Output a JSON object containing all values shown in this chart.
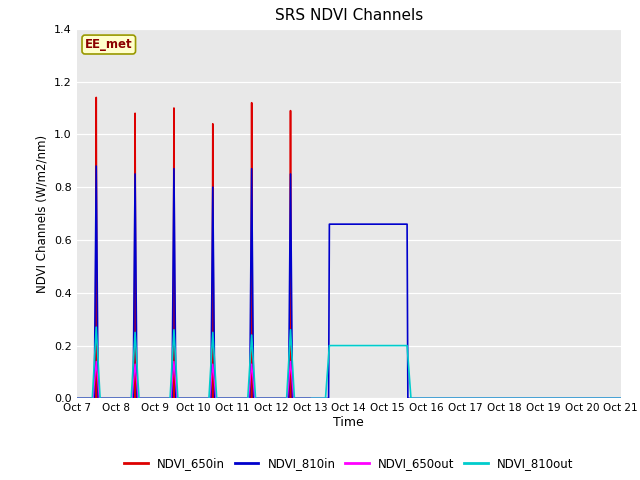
{
  "title": "SRS NDVI Channels",
  "xlabel": "Time",
  "ylabel": "NDVI Channels (W/m2/nm)",
  "ylim": [
    0,
    1.4
  ],
  "xlim": [
    0,
    14
  ],
  "annotation_text": "EE_met",
  "plot_bg_color": "#e8e8e8",
  "x_tick_labels": [
    "Oct 7",
    "Oct 8",
    "Oct 9",
    "Oct 10",
    "Oct 11",
    "Oct 12",
    "Oct 13",
    "Oct 14",
    "Oct 15",
    "Oct 16",
    "Oct 17",
    "Oct 18",
    "Oct 19",
    "Oct 20",
    "Oct 21"
  ],
  "x_tick_positions": [
    0,
    1,
    2,
    3,
    4,
    5,
    6,
    7,
    8,
    9,
    10,
    11,
    12,
    13,
    14
  ],
  "y_ticks": [
    0.0,
    0.2,
    0.4,
    0.6,
    0.8,
    1.0,
    1.2,
    1.4
  ],
  "series": {
    "NDVI_650in": {
      "color": "#dd0000",
      "linewidth": 1.2,
      "data_x": [
        0.0,
        0.48,
        0.5,
        0.52,
        1.48,
        1.5,
        1.52,
        2.48,
        2.5,
        2.52,
        3.48,
        3.5,
        3.52,
        4.48,
        4.5,
        4.52,
        5.48,
        5.5,
        5.52,
        6.0
      ],
      "data_y": [
        0.0,
        0.0,
        1.14,
        0.0,
        0.0,
        1.08,
        0.0,
        0.0,
        1.1,
        0.0,
        0.0,
        1.04,
        0.0,
        0.0,
        1.12,
        0.0,
        0.0,
        1.09,
        0.0,
        0.0
      ]
    },
    "NDVI_810in": {
      "color": "#0000cc",
      "linewidth": 1.2,
      "data_x": [
        0.0,
        0.45,
        0.5,
        0.55,
        1.45,
        1.5,
        1.55,
        2.45,
        2.5,
        2.55,
        3.45,
        3.5,
        3.55,
        4.45,
        4.5,
        4.55,
        5.45,
        5.5,
        5.55,
        5.99,
        6.0,
        6.48,
        6.5,
        6.52,
        8.48,
        8.5,
        8.52,
        14.0
      ],
      "data_y": [
        0.0,
        0.0,
        0.88,
        0.0,
        0.0,
        0.85,
        0.0,
        0.0,
        0.87,
        0.0,
        0.0,
        0.8,
        0.0,
        0.0,
        0.87,
        0.0,
        0.0,
        0.85,
        0.0,
        0.0,
        0.0,
        0.0,
        0.66,
        0.66,
        0.66,
        0.66,
        0.0,
        0.0
      ]
    },
    "NDVI_650out": {
      "color": "#ff00ff",
      "linewidth": 1.0,
      "data_x": [
        0.0,
        0.42,
        0.5,
        0.58,
        1.42,
        1.5,
        1.58,
        2.42,
        2.5,
        2.58,
        3.42,
        3.5,
        3.58,
        4.42,
        4.5,
        4.58,
        5.42,
        5.5,
        5.58,
        6.0
      ],
      "data_y": [
        0.0,
        0.0,
        0.14,
        0.0,
        0.0,
        0.13,
        0.0,
        0.0,
        0.14,
        0.0,
        0.0,
        0.13,
        0.0,
        0.0,
        0.13,
        0.0,
        0.0,
        0.14,
        0.0,
        0.0
      ]
    },
    "NDVI_810out": {
      "color": "#00cccc",
      "linewidth": 1.2,
      "data_x": [
        0.0,
        0.4,
        0.5,
        0.6,
        1.4,
        1.5,
        1.6,
        2.4,
        2.5,
        2.6,
        3.4,
        3.5,
        3.6,
        4.4,
        4.5,
        4.6,
        5.4,
        5.5,
        5.6,
        5.99,
        6.0,
        6.4,
        6.5,
        6.6,
        8.4,
        8.5,
        8.6,
        14.0
      ],
      "data_y": [
        0.0,
        0.0,
        0.27,
        0.0,
        0.0,
        0.25,
        0.0,
        0.0,
        0.26,
        0.0,
        0.0,
        0.25,
        0.0,
        0.0,
        0.24,
        0.0,
        0.0,
        0.26,
        0.0,
        0.0,
        0.0,
        0.0,
        0.2,
        0.2,
        0.2,
        0.2,
        0.0,
        0.0
      ]
    }
  },
  "legend": [
    {
      "label": "NDVI_650in",
      "color": "#dd0000"
    },
    {
      "label": "NDVI_810in",
      "color": "#0000cc"
    },
    {
      "label": "NDVI_650out",
      "color": "#ff00ff"
    },
    {
      "label": "NDVI_810out",
      "color": "#00cccc"
    }
  ]
}
